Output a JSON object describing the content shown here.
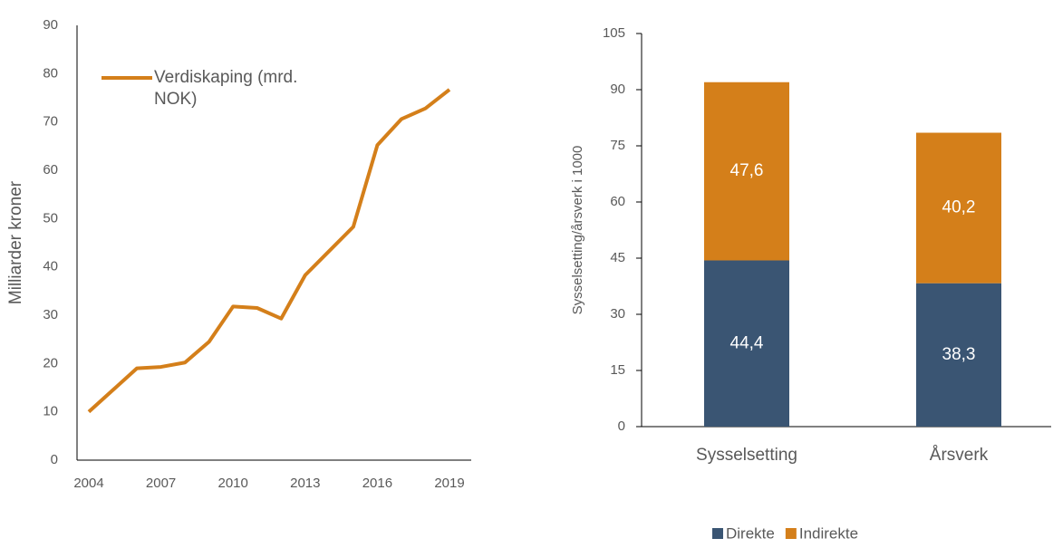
{
  "chart_data": [
    {
      "type": "line",
      "y_label": "Milliarder kroner",
      "x": [
        2004,
        2005,
        2006,
        2007,
        2008,
        2009,
        2010,
        2011,
        2012,
        2013,
        2014,
        2015,
        2016,
        2017,
        2018,
        2019
      ],
      "series": [
        {
          "name": "Verdiskaping (mrd. NOK)",
          "color": "#d47f1a",
          "values": [
            10,
            14.5,
            19,
            19.3,
            20.2,
            24.5,
            31.8,
            31.5,
            29.3,
            38.3,
            43.3,
            48.3,
            65.2,
            70.6,
            72.8,
            76.7
          ]
        }
      ],
      "xlim": [
        2004,
        2019
      ],
      "xticks": [
        2004,
        2007,
        2010,
        2013,
        2016,
        2019
      ],
      "ylim": [
        0,
        90
      ],
      "yticks": [
        0,
        10,
        20,
        30,
        40,
        50,
        60,
        70,
        80,
        90
      ],
      "legend": "upper left"
    },
    {
      "type": "stacked_bar",
      "y_label": "Sysselsetting/årsverk i 1000",
      "categories": [
        "Sysselsetting",
        "Årsverk"
      ],
      "series": [
        {
          "name": "Direkte",
          "color": "#3a5573",
          "values": [
            44.4,
            38.3
          ],
          "value_labels": [
            "44,4",
            "38,3"
          ]
        },
        {
          "name": "Indirekte",
          "color": "#d47f1a",
          "values": [
            47.6,
            40.2
          ],
          "value_labels": [
            "47,6",
            "40,2"
          ]
        }
      ],
      "ylim": [
        0,
        105
      ],
      "yticks": [
        0,
        15,
        30,
        45,
        60,
        75,
        90,
        105
      ],
      "legend": "bottom"
    }
  ]
}
